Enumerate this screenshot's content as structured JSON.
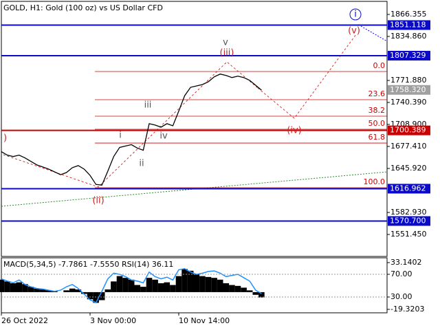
{
  "chart_data": [
    {
      "type": "line",
      "title": "GOLD, H1:  Gold (100 oz) vs US Dollar CFD",
      "categories": [
        "26 Oct 2022",
        null,
        null,
        null,
        null,
        null,
        null,
        null,
        null,
        null,
        null,
        null,
        null,
        null,
        null,
        "3 Nov 00:00",
        null,
        null,
        null,
        null,
        null,
        null,
        null,
        null,
        null,
        null,
        null,
        null,
        null,
        null,
        "10 Nov 14:00",
        null,
        null,
        null,
        null,
        null,
        null,
        null,
        null,
        null,
        null,
        null,
        null,
        null,
        null
      ],
      "values": [
        1670,
        1665,
        1663,
        1665,
        1661,
        1656,
        1651,
        1648,
        1645,
        1641,
        1637,
        1640,
        1647,
        1650,
        1645,
        1636,
        1623,
        1622,
        1642,
        1663,
        1676,
        1678,
        1680,
        1675,
        1672,
        1710,
        1708,
        1705,
        1710,
        1707,
        1728,
        1750,
        1762,
        1764,
        1766,
        1770,
        1777,
        1781,
        1779,
        1776,
        1778,
        1776,
        1772,
        1765,
        1758
      ],
      "color": "#000000",
      "ylim": [
        1520,
        1887
      ],
      "yticks": [
        1866.355,
        {
          "value": 1834.86,
          "label": "1834.860"
        },
        {
          "value": 1771.88,
          "label": "1771.880"
        },
        {
          "value": 1740.39,
          "label": "1740.390"
        },
        {
          "value": 1708.9,
          "label": "1708.900"
        },
        {
          "value": 1677.41,
          "label": "1677.410"
        },
        {
          "value": 1645.92,
          "label": "1645.920"
        },
        {
          "value": 1582.93,
          "label": "1582.930"
        },
        {
          "value": 1551.45,
          "label": "1551.450"
        }
      ],
      "levels": [
        {
          "value": 1851.118,
          "color": "#0a0ac8"
        },
        {
          "value": 1807.329,
          "color": "#0a0ac8"
        },
        {
          "value": 1700.389,
          "color": "#cc0000"
        },
        {
          "value": 1616.962,
          "color": "#0a0ac8"
        },
        {
          "value": {
            "value": 1570.7,
            "label": "1570.700"
          },
          "color": "#0a0ac8"
        }
      ],
      "current_price": {
        "value": 1758.32,
        "label": "1758.320"
      },
      "fib_levels": [
        {
          "value": 1784.7,
          "label": "0.0"
        },
        {
          "value": 1744.3,
          "label": "23.6"
        },
        {
          "value": 1720.7,
          "label": "38.2"
        },
        {
          "value": 1702.0,
          "label": "50.0"
        },
        {
          "value": 1682.3,
          "label": "61.8"
        },
        {
          "value": 1618.4,
          "label": "100.0"
        }
      ],
      "annotations": [
        "i",
        "(v)",
        "(iii)",
        "(iv)",
        "(ii)",
        "i",
        "ii",
        "iii",
        "iv",
        "v",
        ")"
      ]
    },
    {
      "type": "indicator",
      "title": "MACD(5,34,5) -7.7861 -7.5550 RSI(14) 36.11",
      "histogram": {
        "color": "#000000",
        "values": [
          14,
          12,
          10,
          11,
          9,
          6,
          4,
          3,
          2,
          1,
          0,
          2,
          4,
          3,
          -2,
          -8,
          -12,
          -9,
          3,
          12,
          18,
          16,
          14,
          8,
          6,
          16,
          14,
          10,
          11,
          8,
          18,
          26,
          24,
          20,
          18,
          17,
          16,
          14,
          10,
          8,
          7,
          5,
          2,
          -3,
          -6
        ]
      },
      "line": {
        "color": "#1e90ff",
        "axis": "y2",
        "values": [
          62,
          58,
          55,
          60,
          52,
          48,
          45,
          44,
          42,
          40,
          42,
          48,
          52,
          45,
          35,
          25,
          20,
          40,
          62,
          72,
          70,
          66,
          60,
          58,
          55,
          74,
          66,
          62,
          65,
          60,
          78,
          80,
          74,
          70,
          72,
          75,
          76,
          72,
          66,
          68,
          70,
          64,
          58,
          42,
          36
        ]
      },
      "ylim": [
        -23.2,
        38.5
      ],
      "yticks": [
        33.1402,
        -19.3203
      ],
      "y2lim": [
        2.1,
        99.1
      ],
      "y2ticks": [
        {
          "value": 70,
          "label": "70.00"
        },
        {
          "value": 30,
          "label": "30.00"
        }
      ]
    }
  ]
}
